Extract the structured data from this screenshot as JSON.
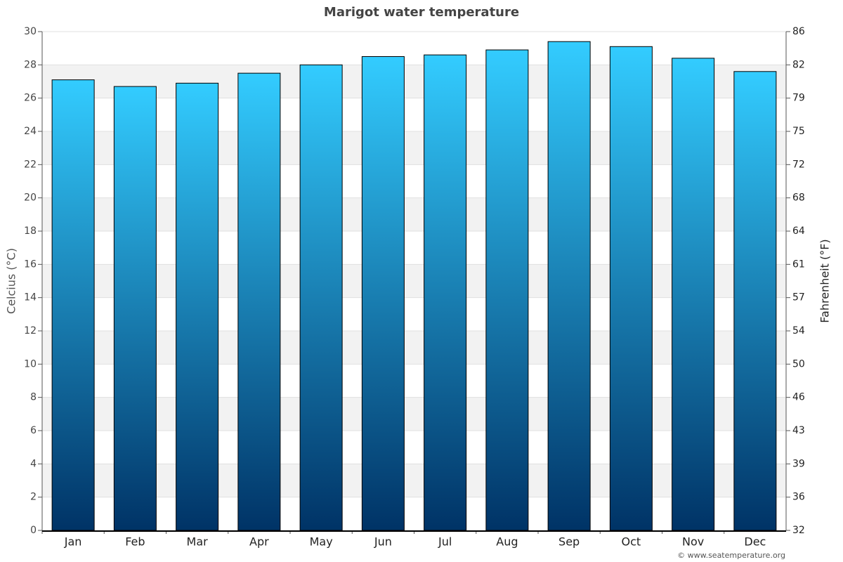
{
  "chart_data": {
    "type": "bar",
    "title": "Marigot water temperature",
    "y_label": "Celcius (°C)",
    "y2_label": "Fahrenheit (°F)",
    "categories": [
      "Jan",
      "Feb",
      "Mar",
      "Apr",
      "May",
      "Jun",
      "Jul",
      "Aug",
      "Sep",
      "Oct",
      "Nov",
      "Dec"
    ],
    "values": [
      27.1,
      26.7,
      26.9,
      27.5,
      28.0,
      28.5,
      28.6,
      28.9,
      29.4,
      29.1,
      28.4,
      27.6
    ],
    "color_top": "#33ccff",
    "color_bottom": "#003366",
    "ylim": [
      0,
      30
    ],
    "yticks": [
      0,
      2,
      4,
      6,
      8,
      10,
      12,
      14,
      16,
      18,
      20,
      22,
      24,
      26,
      28,
      30
    ],
    "y2lim": [
      32,
      86
    ],
    "y2ticks": [
      32,
      {
        "value": 35.6,
        "label": "36"
      },
      {
        "value": 39.2,
        "label": "39"
      },
      {
        "value": 42.8,
        "label": "43"
      },
      {
        "value": 46.4,
        "label": "46"
      },
      50,
      {
        "value": 53.6,
        "label": "54"
      },
      {
        "value": 57.2,
        "label": "57"
      },
      {
        "value": 60.8,
        "label": "61"
      },
      {
        "value": 64.4,
        "label": "64"
      },
      68,
      {
        "value": 71.6,
        "label": "72"
      },
      {
        "value": 75.2,
        "label": "75"
      },
      {
        "value": 78.8,
        "label": "79"
      },
      {
        "value": 82.4,
        "label": "82"
      },
      86
    ],
    "grid": true,
    "credit": "© www.seatemperature.org"
  }
}
